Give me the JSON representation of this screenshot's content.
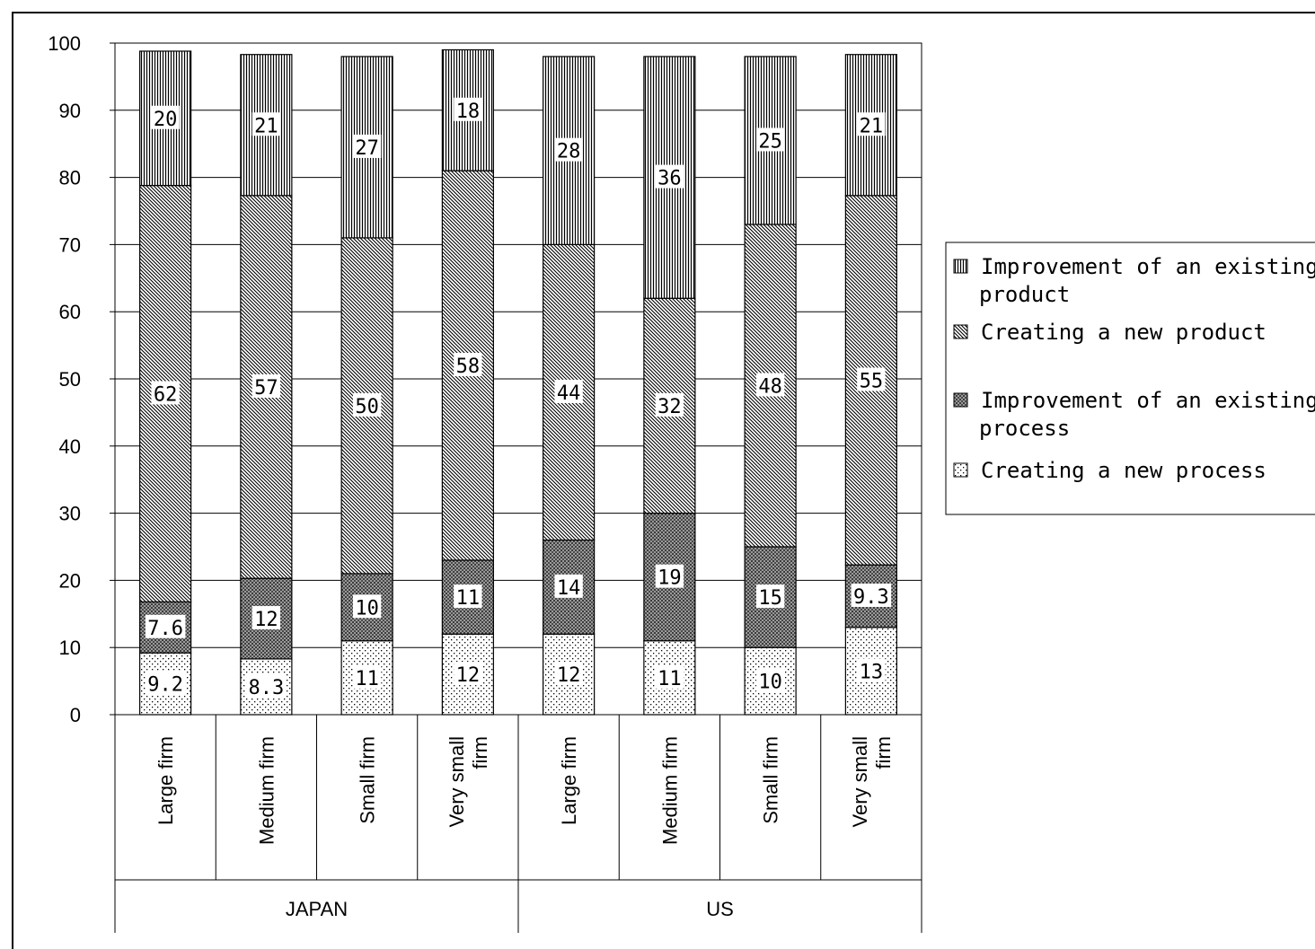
{
  "chart_data": {
    "type": "bar",
    "stacked": true,
    "yticks": [
      "0",
      "10",
      "20",
      "30",
      "40",
      "50",
      "60",
      "70",
      "80",
      "90",
      "100"
    ],
    "ylim": [
      0,
      100
    ],
    "grid": "horizontal",
    "legend_placement": "right",
    "groups": [
      "JAPAN",
      "US"
    ],
    "categories": [
      [
        "Large firm"
      ],
      [
        "Medium firm"
      ],
      [
        "Small firm"
      ],
      [
        "Very small",
        "firm"
      ],
      [
        "Large firm"
      ],
      [
        "Medium firm"
      ],
      [
        "Small firm"
      ],
      [
        "Very small",
        "firm"
      ]
    ],
    "series": [
      {
        "name": "Creating a new process",
        "pattern": "dots",
        "values": [
          9.2,
          8.3,
          11,
          12,
          12,
          11,
          10,
          13
        ],
        "labels": [
          "9.2",
          "8.3",
          "11",
          "12",
          "12",
          "11",
          "10",
          "13"
        ]
      },
      {
        "name": "Improvement of an existing process",
        "pattern": "crosshatch",
        "values": [
          7.6,
          12,
          10,
          11,
          14,
          19,
          15,
          9.3
        ],
        "labels": [
          "7.6",
          "12",
          "10",
          "11",
          "14",
          "19",
          "15",
          "9.3"
        ]
      },
      {
        "name": "Creating a new product",
        "pattern": "diagonal",
        "values": [
          62,
          57,
          50,
          58,
          44,
          32,
          48,
          55
        ],
        "labels": [
          "62",
          "57",
          "50",
          "58",
          "44",
          "32",
          "48",
          "55"
        ]
      },
      {
        "name": "Improvement of an existing product",
        "pattern": "vertical",
        "values": [
          20,
          21,
          27,
          18,
          28,
          36,
          25,
          21
        ],
        "labels": [
          "20",
          "21",
          "27",
          "18",
          "28",
          "36",
          "25",
          "21"
        ]
      }
    ],
    "legend": [
      {
        "lines": [
          "Improvement of an existing",
          "product"
        ],
        "pattern": "vertical"
      },
      {
        "lines": [
          " Creating a new product"
        ],
        "pattern": "diagonal"
      },
      {
        "lines": [
          "Improvement of an existing",
          "process"
        ],
        "pattern": "crosshatch"
      },
      {
        "lines": [
          "Creating a new process"
        ],
        "pattern": "dots"
      }
    ]
  }
}
